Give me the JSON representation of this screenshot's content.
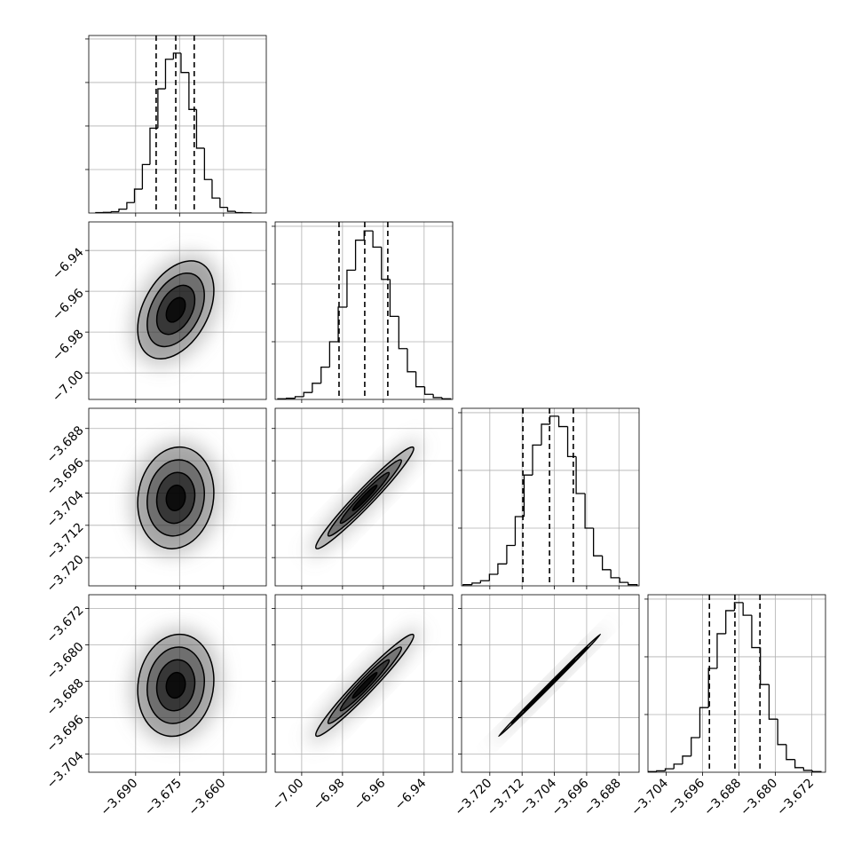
{
  "chart_data": {
    "type": "corner",
    "grid": true,
    "color": "#000000",
    "levels": [
      0.5,
      1,
      1.5,
      2
    ],
    "parameters": [
      {
        "lim": [
          -3.706,
          -3.6454
        ],
        "ticks": [
          {
            "value": -3.69,
            "label": "−3.690"
          },
          {
            "value": -3.675,
            "label": "−3.675"
          },
          {
            "value": -3.66,
            "label": "−3.660"
          }
        ],
        "mean": -3.6763,
        "sigma": 0.0065,
        "quantiles": [
          -3.683,
          -3.6763,
          -3.67
        ],
        "bins": [
          -3.7036,
          -3.701,
          -3.6983,
          -3.6957,
          -3.693,
          -3.6904,
          -3.6877,
          -3.6851,
          -3.6824,
          -3.6798,
          -3.6771,
          -3.6745,
          -3.6718,
          -3.6692,
          -3.6665,
          -3.6639,
          -3.6612,
          -3.6586,
          -3.6559,
          -3.6533,
          -3.6506
        ],
        "counts": [
          2,
          3,
          6,
          18,
          48,
          110,
          223,
          390,
          571,
          707,
          735,
          646,
          476,
          298,
          154,
          69,
          26,
          8,
          2,
          1
        ],
        "count_lim": [
          0,
          816
        ],
        "count_ticks": [
          200,
          400,
          600,
          800
        ]
      },
      {
        "lim": [
          -7.013,
          -6.926
        ],
        "ticks": [
          {
            "value": -7.0,
            "label": "−7.00"
          },
          {
            "value": -6.98,
            "label": "−6.98"
          },
          {
            "value": -6.96,
            "label": "−6.96"
          },
          {
            "value": -6.94,
            "label": "−6.94"
          }
        ],
        "mean": -6.9691,
        "sigma": 0.012,
        "quantiles": [
          -6.9817,
          -6.9691,
          -6.9578
        ],
        "bins": [
          -7.0117,
          -7.0075,
          -7.0032,
          -6.999,
          -6.9948,
          -6.9905,
          -6.9863,
          -6.9821,
          -6.9778,
          -6.9736,
          -6.9694,
          -6.9651,
          -6.9609,
          -6.9567,
          -6.9524,
          -6.9482,
          -6.944,
          -6.9397,
          -6.9355,
          -6.9312,
          -6.927
        ],
        "counts": [
          3,
          5,
          12,
          30,
          70,
          140,
          250,
          400,
          560,
          690,
          730,
          660,
          520,
          360,
          220,
          120,
          55,
          22,
          8,
          3
        ],
        "count_lim": [
          0,
          769
        ],
        "count_ticks": [
          250,
          500,
          750
        ]
      },
      {
        "lim": [
          -3.727,
          -3.683
        ],
        "ticks": [
          {
            "value": -3.72,
            "label": "−3.720"
          },
          {
            "value": -3.712,
            "label": "−3.712"
          },
          {
            "value": -3.704,
            "label": "−3.704"
          },
          {
            "value": -3.696,
            "label": "−3.696"
          },
          {
            "value": -3.688,
            "label": "−3.688"
          }
        ],
        "mean": -3.7052,
        "sigma": 0.0063,
        "quantiles": [
          -3.7118,
          -3.7052,
          -3.6993
        ],
        "bins": [
          -3.7266,
          -3.7244,
          -3.7223,
          -3.7201,
          -3.718,
          -3.7158,
          -3.7137,
          -3.7115,
          -3.7094,
          -3.7072,
          -3.7051,
          -3.7029,
          -3.7007,
          -3.6986,
          -3.6964,
          -3.6943,
          -3.6921,
          -3.69,
          -3.6878,
          -3.6857,
          -3.6835
        ],
        "counts": [
          5,
          12,
          22,
          50,
          95,
          175,
          300,
          480,
          610,
          700,
          735,
          690,
          560,
          400,
          250,
          130,
          70,
          35,
          15,
          5
        ],
        "count_lim": [
          0,
          769
        ],
        "count_ticks": [
          250,
          500,
          750
        ]
      },
      {
        "lim": [
          -3.708,
          -3.669
        ],
        "ticks": [
          {
            "value": -3.704,
            "label": "−3.704"
          },
          {
            "value": -3.696,
            "label": "−3.696"
          },
          {
            "value": -3.688,
            "label": "−3.688"
          },
          {
            "value": -3.68,
            "label": "−3.680"
          },
          {
            "value": -3.672,
            "label": "−3.672"
          }
        ],
        "mean": -3.6889,
        "sigma": 0.0056,
        "quantiles": [
          -3.6945,
          -3.6889,
          -3.6834
        ],
        "bins": [
          -3.708,
          -3.7061,
          -3.7042,
          -3.7023,
          -3.7004,
          -3.6985,
          -3.6966,
          -3.6947,
          -3.6928,
          -3.6909,
          -3.689,
          -3.6871,
          -3.6852,
          -3.6833,
          -3.6814,
          -3.6795,
          -3.6776,
          -3.6757,
          -3.6738,
          -3.6719,
          -3.67
        ],
        "counts": [
          3,
          6,
          15,
          35,
          70,
          150,
          280,
          450,
          600,
          700,
          735,
          680,
          540,
          380,
          230,
          120,
          55,
          20,
          8,
          3
        ],
        "count_lim": [
          0,
          769
        ],
        "count_ticks": [
          250,
          500,
          750
        ]
      }
    ],
    "pairs": [
      {
        "x": 0,
        "y": 1,
        "rho": 0.4
      },
      {
        "x": 0,
        "y": 2,
        "rho": 0.1
      },
      {
        "x": 1,
        "y": 2,
        "rho": 0.97
      },
      {
        "x": 0,
        "y": 3,
        "rho": 0.1
      },
      {
        "x": 1,
        "y": 3,
        "rho": 0.97
      },
      {
        "x": 2,
        "y": 3,
        "rho": 0.999
      }
    ]
  }
}
